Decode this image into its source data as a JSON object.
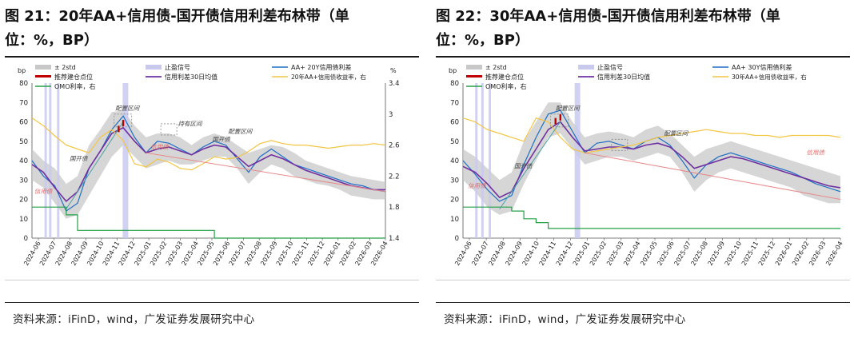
{
  "figures": [
    {
      "title": "图 21：20年AA+信用债-国开债信用利差布林带（单",
      "title_cont": "位：%，BP）",
      "source": "资料来源：iFinD，wind，广发证券发展研究中心",
      "legend": {
        "band": "± 2std",
        "signal": "止盈信号",
        "spread": "AA+ 20Y信用债利差",
        "entry": "推荐建仓点位",
        "ma30": "信用利差30日均值",
        "yield": "20年AA+信用债收益率，右",
        "omo": "OMO利率，右"
      },
      "annotations": {
        "peizhi": "配置区间",
        "chiyou": "持有区间",
        "peizhi2": "配置区间",
        "xinyongzhai": "信用债",
        "guokaizhai": "国开债",
        "guokaizhai2": "国开债",
        "chaoji": "信用债"
      }
    },
    {
      "title": "图 22：30年AA+信用债-国开债信用利差布林带（单",
      "title_cont": "位：%，BP）",
      "source": "资料来源：iFinD，wind，广发证券发展研究中心",
      "legend": {
        "band": "± 2std",
        "signal": "止盈信号",
        "spread": "AA+ 30Y信用债利差",
        "entry": "推荐建仓点位",
        "ma30": "信用利差30日均值",
        "yield": "30年AA+信用债收益率，右",
        "omo": "OMO利率，右"
      },
      "annotations": {
        "peizhi": "配置区间",
        "peizhi2": "配置区间",
        "xinyongzhai": "信用债",
        "guokaizhai": "国开债",
        "xinyongzhai2": "信用债"
      }
    }
  ],
  "chart_data": [
    {
      "type": "line",
      "title": "图 21：20年AA+信用债-国开债信用利差布林带（单位：%，BP）",
      "ylabel_left": "bp",
      "ylabel_right": "%",
      "ylim_left": [
        0,
        80
      ],
      "yticks_left": [
        0,
        10,
        20,
        30,
        40,
        50,
        60,
        70,
        80
      ],
      "ylim_right": [
        1.4,
        3.4
      ],
      "yticks_right": [
        "1.4",
        "1.8",
        "2.2",
        "2.6",
        "3",
        "3.4"
      ],
      "x_ticks": [
        "2024-06",
        "2024-07",
        "2024-08",
        "2024-09",
        "2024-10",
        "2024-11",
        "2024-12",
        "2025-01",
        "2025-02",
        "2025-03",
        "2025-04",
        "2025-05",
        "2025-06",
        "2025-07",
        "2025-08",
        "2025-09",
        "2025-10",
        "2025-11",
        "2025-12",
        "2026-01",
        "2026-02",
        "2026-03",
        "2026-04"
      ],
      "series": [
        {
          "name": "AA+ 20Y信用债利差",
          "axis": "left",
          "color": "#1f6fc5",
          "values": [
            40,
            32,
            27,
            14,
            18,
            36,
            45,
            56,
            63,
            52,
            44,
            50,
            49,
            46,
            43,
            47,
            50,
            48,
            41,
            34,
            42,
            46,
            42,
            38,
            36,
            34,
            32,
            30,
            28,
            27,
            25,
            24
          ]
        },
        {
          "name": "信用利差30日均值",
          "axis": "left",
          "color": "#7030a0",
          "values": [
            38,
            34,
            26,
            19,
            24,
            36,
            45,
            54,
            57,
            50,
            44,
            46,
            47,
            45,
            43,
            46,
            48,
            47,
            42,
            37,
            40,
            43,
            41,
            38,
            35,
            33,
            31,
            29,
            27,
            26,
            25,
            25
          ]
        },
        {
          "name": "20年AA+信用债收益率，右",
          "axis": "right",
          "color": "#f4c542",
          "values": [
            2.95,
            2.85,
            2.72,
            2.6,
            2.55,
            2.5,
            2.7,
            2.8,
            2.66,
            2.36,
            2.32,
            2.42,
            2.38,
            2.3,
            2.28,
            2.36,
            2.45,
            2.42,
            2.44,
            2.52,
            2.62,
            2.66,
            2.62,
            2.6,
            2.6,
            2.58,
            2.56,
            2.58,
            2.6,
            2.6,
            2.62,
            2.6
          ]
        },
        {
          "name": "OMO利率，右",
          "axis": "right",
          "color": "#22a046",
          "values": [
            1.8,
            1.8,
            1.8,
            1.7,
            1.5,
            1.5,
            1.5,
            1.5,
            1.5,
            1.5,
            1.5,
            1.5,
            1.5,
            1.5,
            1.5,
            1.5,
            1.4,
            1.4,
            1.4,
            1.4,
            1.4,
            1.4,
            1.4,
            1.4,
            1.4,
            1.4,
            1.4,
            1.4,
            1.4,
            1.4,
            1.4,
            1.4
          ]
        }
      ],
      "band_upper": [
        46,
        40,
        36,
        28,
        32,
        48,
        56,
        65,
        66,
        58,
        52,
        54,
        54,
        52,
        48,
        52,
        54,
        52,
        48,
        44,
        46,
        48,
        47,
        44,
        40,
        38,
        36,
        34,
        32,
        31,
        30,
        29
      ],
      "band_lower": [
        30,
        26,
        18,
        10,
        12,
        22,
        32,
        42,
        48,
        42,
        36,
        38,
        40,
        38,
        38,
        40,
        42,
        42,
        36,
        28,
        34,
        38,
        36,
        32,
        30,
        28,
        27,
        25,
        22,
        21,
        20,
        20
      ]
    },
    {
      "type": "line",
      "title": "图 22：30年AA+信用债-国开债信用利差布林带（单位：%，BP）",
      "ylabel_left": "bp",
      "ylim_left": [
        0,
        80
      ],
      "yticks_left": [
        0,
        10,
        20,
        30,
        40,
        50,
        60,
        70,
        80
      ],
      "x_ticks": [
        "2024-06",
        "2024-07",
        "2024-08",
        "2024-09",
        "2024-10",
        "2024-11",
        "2024-12",
        "2025-01",
        "2025-02",
        "2025-03",
        "2025-04",
        "2025-05",
        "2025-06",
        "2025-07",
        "2025-08",
        "2025-09",
        "2025-10",
        "2025-11",
        "2025-12",
        "2026-01",
        "2026-02",
        "2026-03",
        "2026-04"
      ],
      "series": [
        {
          "name": "AA+ 30Y信用债利差",
          "axis": "left",
          "color": "#1f6fc5",
          "values": [
            40,
            33,
            25,
            19,
            22,
            38,
            52,
            64,
            66,
            55,
            44,
            49,
            50,
            48,
            46,
            50,
            52,
            48,
            40,
            31,
            38,
            42,
            44,
            42,
            40,
            38,
            36,
            34,
            31,
            28,
            26,
            24
          ]
        },
        {
          "name": "信用利差30日均值",
          "axis": "left",
          "color": "#7030a0",
          "values": [
            37,
            34,
            28,
            21,
            24,
            36,
            46,
            56,
            60,
            52,
            45,
            46,
            47,
            47,
            46,
            48,
            49,
            47,
            42,
            36,
            38,
            40,
            42,
            41,
            39,
            37,
            35,
            33,
            31,
            29,
            27,
            26
          ]
        },
        {
          "name": "30年AA+信用债收益率，右",
          "axis": "right",
          "color": "#f4c542",
          "values": [
            62,
            60,
            56,
            54,
            52,
            50,
            62,
            60,
            52,
            46,
            44,
            45,
            46,
            47,
            48,
            50,
            52,
            53,
            54,
            55,
            56,
            55,
            54,
            54,
            53,
            53,
            52,
            53,
            53,
            53,
            53,
            52
          ]
        },
        {
          "name": "OMO利率，右",
          "axis": "right",
          "color": "#22a046",
          "values": [
            16,
            16,
            16,
            16,
            14,
            10,
            8,
            5,
            5,
            5,
            5,
            5,
            5,
            5,
            5,
            5,
            5,
            5,
            5,
            5,
            5,
            5,
            5,
            5,
            5,
            5,
            5,
            5,
            5,
            5,
            5,
            5
          ]
        }
      ],
      "band_upper": [
        46,
        42,
        36,
        30,
        34,
        50,
        60,
        70,
        70,
        60,
        52,
        54,
        55,
        54,
        52,
        56,
        58,
        54,
        48,
        42,
        46,
        48,
        50,
        48,
        46,
        44,
        42,
        40,
        38,
        36,
        34,
        32
      ],
      "band_lower": [
        30,
        24,
        16,
        12,
        14,
        28,
        40,
        52,
        54,
        46,
        38,
        40,
        42,
        42,
        40,
        42,
        44,
        42,
        34,
        24,
        30,
        34,
        36,
        34,
        32,
        30,
        28,
        26,
        22,
        20,
        18,
        18
      ]
    }
  ]
}
